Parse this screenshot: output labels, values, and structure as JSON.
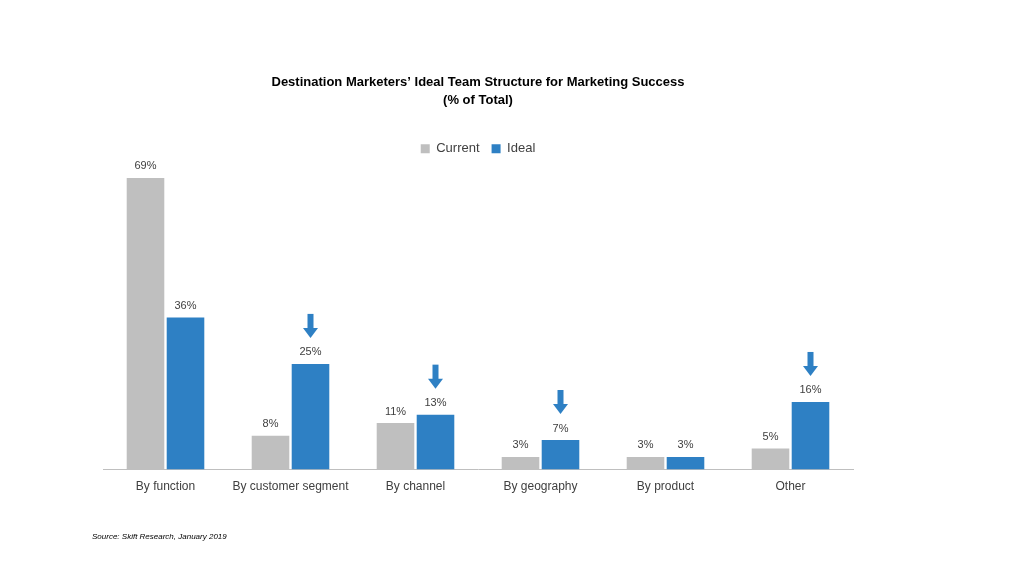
{
  "chart_data": {
    "type": "bar",
    "title": "Destination Marketers’ Ideal Team Structure for Marketing Success",
    "subtitle": "(% of Total)",
    "source": "Source: Skift Research, January 2019",
    "categories": [
      "By function",
      "By customer segment",
      "By channel",
      "By geography",
      "By product",
      "Other"
    ],
    "series": [
      {
        "name": "Current",
        "color": "#bfbfbf",
        "values": [
          69,
          8,
          11,
          3,
          3,
          5
        ],
        "value_labels": [
          "69%",
          "8%",
          "11%",
          "3%",
          "3%",
          "5%"
        ]
      },
      {
        "name": "Ideal",
        "color": "#2e80c4",
        "values": [
          36,
          25,
          13,
          7,
          3,
          16
        ],
        "value_labels": [
          "36%",
          "25%",
          "13%",
          "7%",
          "3%",
          "16%"
        ]
      }
    ],
    "ylim": [
      0,
      72
    ],
    "grid": false,
    "legend": "top",
    "data_labels": true,
    "tick_labels": "x"
  }
}
